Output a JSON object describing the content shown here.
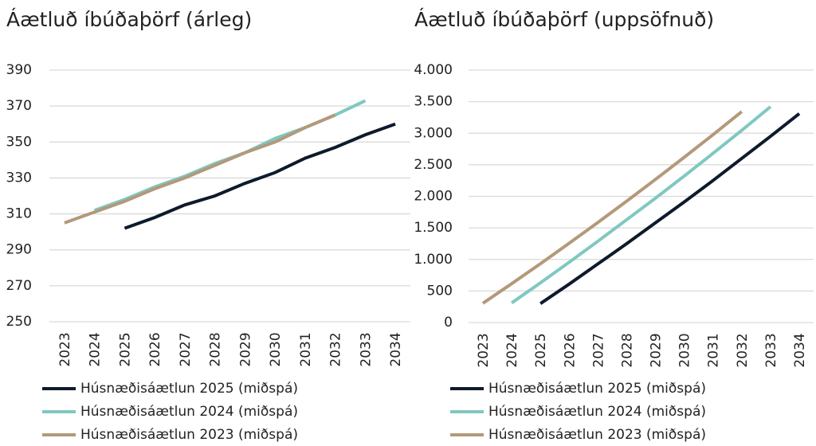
{
  "chart_data": [
    {
      "type": "line",
      "title": "Áætluð íbúðaþörf (árleg)",
      "categories": [
        "2023",
        "2024",
        "2025",
        "2026",
        "2027",
        "2028",
        "2029",
        "2030",
        "2031",
        "2032",
        "2033",
        "2034"
      ],
      "ylim": [
        250,
        390
      ],
      "yticks": [
        250,
        270,
        290,
        310,
        330,
        350,
        370,
        390
      ],
      "grid": true,
      "series": [
        {
          "name": "Húsnæðisáætlun 2025 (miðspá)",
          "color": "#0e1a2c",
          "values": [
            null,
            null,
            302,
            308,
            315,
            320,
            327,
            333,
            341,
            347,
            354,
            360
          ]
        },
        {
          "name": "Húsnæðisáætlun 2024 (miðspá)",
          "color": "#7fc8c1",
          "values": [
            null,
            312,
            318,
            325,
            331,
            338,
            344,
            352,
            358,
            365,
            373,
            null
          ]
        },
        {
          "name": "Húsnæðisáætlun 2023 (miðspá)",
          "color": "#b3997a",
          "values": [
            305,
            311,
            317,
            324,
            330,
            337,
            344,
            350,
            358,
            365,
            null,
            null
          ]
        }
      ]
    },
    {
      "type": "line",
      "title": "Áætluð íbúðaþörf (uppsöfnuð)",
      "categories": [
        "2023",
        "2024",
        "2025",
        "2026",
        "2027",
        "2028",
        "2029",
        "2030",
        "2031",
        "2032",
        "2033",
        "2034"
      ],
      "ylim": [
        0,
        4000
      ],
      "yticks": [
        0,
        500,
        {
          "value": 1000,
          "label": "1.000"
        },
        {
          "value": 1500,
          "label": "1.500"
        },
        {
          "value": 2000,
          "label": "2.000"
        },
        {
          "value": 2500,
          "label": "2.500"
        },
        {
          "value": 3000,
          "label": "3.000"
        },
        {
          "value": 3500,
          "label": "3.500"
        },
        {
          "value": 4000,
          "label": "4.000"
        }
      ],
      "grid": true,
      "series": [
        {
          "name": "Húsnæðisáætlun 2025 (miðspá)",
          "color": "#0e1a2c",
          "values": [
            null,
            null,
            300,
            610,
            930,
            1250,
            1580,
            1910,
            2250,
            2600,
            2950,
            3310
          ]
        },
        {
          "name": "Húsnæðisáætlun 2024 (miðspá)",
          "color": "#7fc8c1",
          "values": [
            null,
            312,
            630,
            955,
            1290,
            1630,
            1970,
            2320,
            2680,
            3045,
            3420,
            null
          ]
        },
        {
          "name": "Húsnæðisáætlun 2023 (miðspá)",
          "color": "#b3997a",
          "values": [
            305,
            616,
            933,
            1257,
            1587,
            1924,
            2268,
            2618,
            2976,
            3341,
            null,
            null
          ]
        }
      ]
    }
  ]
}
